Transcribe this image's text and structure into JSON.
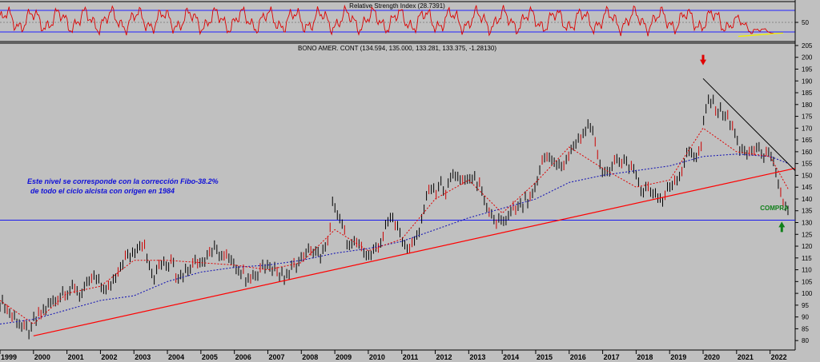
{
  "rsi_panel": {
    "title": "Relative Strength Index (28.7391)",
    "axis_ticks": [
      {
        "value": 50,
        "label": "50"
      }
    ],
    "levels": [
      30,
      50,
      70
    ],
    "range": [
      15,
      85
    ]
  },
  "price_panel": {
    "title": "BONO AMER. CONT (134.594, 135.000, 133.281, 133.375, -1.28130)",
    "annotation_line1": "Este nivel se corresponde con la corrección Fibo-38.2%",
    "annotation_line2": "de todo el ciclo alcista con origen en 1984",
    "buy_label": "COMPRA"
  },
  "colors": {
    "background": "#c0c0c0",
    "price_bars": "#000000",
    "price_bars_accent": "#cc0000",
    "support_line": "#ff0000",
    "fibo_line": "#1a1aee",
    "short_ma": "#e00000",
    "long_ma": "#1a1ab4",
    "rsi_line": "#dd0000",
    "rsi_trend": "#f0f000",
    "down_arrow": "#e00000",
    "up_arrow": "#10801a"
  },
  "chart_data": {
    "type": "line",
    "title": "BONO AMER. CONT (134.594, 135.000, 133.281, 133.375, -1.28130)",
    "xlabel": "",
    "ylabel": "",
    "x_ticks": [
      "1999",
      "2000",
      "2001",
      "2002",
      "2003",
      "2004",
      "2005",
      "2006",
      "2007",
      "2008",
      "2009",
      "2010",
      "2011",
      "2012",
      "2013",
      "2014",
      "2015",
      "2016",
      "2017",
      "2018",
      "2019",
      "2020",
      "2021",
      "2022"
    ],
    "xlim": [
      1999.0,
      2022.75
    ],
    "ylim": [
      76,
      206
    ],
    "y_ticks": [
      80,
      85,
      90,
      95,
      100,
      105,
      110,
      115,
      120,
      125,
      130,
      135,
      140,
      145,
      150,
      155,
      160,
      165,
      170,
      175,
      180,
      185,
      190,
      195,
      200,
      205
    ],
    "price_path": [
      [
        1999.0,
        97
      ],
      [
        1999.2,
        93
      ],
      [
        1999.45,
        89
      ],
      [
        1999.7,
        86
      ],
      [
        1999.9,
        83
      ],
      [
        2000.0,
        88
      ],
      [
        2000.25,
        92
      ],
      [
        2000.5,
        96
      ],
      [
        2000.75,
        99
      ],
      [
        2001.0,
        101
      ],
      [
        2001.2,
        103
      ],
      [
        2001.4,
        99
      ],
      [
        2001.6,
        104
      ],
      [
        2001.85,
        107
      ],
      [
        2002.0,
        103
      ],
      [
        2002.2,
        101
      ],
      [
        2002.35,
        104
      ],
      [
        2002.6,
        112
      ],
      [
        2002.8,
        117
      ],
      [
        2003.0,
        116
      ],
      [
        2003.15,
        120
      ],
      [
        2003.3,
        122
      ],
      [
        2003.45,
        112
      ],
      [
        2003.6,
        108
      ],
      [
        2003.8,
        114
      ],
      [
        2004.0,
        112
      ],
      [
        2004.15,
        115
      ],
      [
        2004.3,
        106
      ],
      [
        2004.45,
        108
      ],
      [
        2004.65,
        111
      ],
      [
        2004.85,
        114
      ],
      [
        2005.0,
        113
      ],
      [
        2005.2,
        116
      ],
      [
        2005.4,
        119
      ],
      [
        2005.6,
        117
      ],
      [
        2005.8,
        115
      ],
      [
        2006.0,
        113
      ],
      [
        2006.2,
        109
      ],
      [
        2006.45,
        106
      ],
      [
        2006.7,
        108
      ],
      [
        2006.9,
        111
      ],
      [
        2007.1,
        112
      ],
      [
        2007.35,
        108
      ],
      [
        2007.5,
        107
      ],
      [
        2007.7,
        110
      ],
      [
        2007.9,
        114
      ],
      [
        2008.1,
        117
      ],
      [
        2008.3,
        119
      ],
      [
        2008.5,
        116
      ],
      [
        2008.7,
        118
      ],
      [
        2008.85,
        126
      ],
      [
        2008.95,
        140
      ],
      [
        2009.05,
        135
      ],
      [
        2009.25,
        127
      ],
      [
        2009.45,
        119
      ],
      [
        2009.65,
        121
      ],
      [
        2009.85,
        118
      ],
      [
        2010.0,
        116
      ],
      [
        2010.2,
        117
      ],
      [
        2010.35,
        122
      ],
      [
        2010.5,
        127
      ],
      [
        2010.65,
        133
      ],
      [
        2010.85,
        129
      ],
      [
        2011.0,
        121
      ],
      [
        2011.15,
        119
      ],
      [
        2011.35,
        121
      ],
      [
        2011.55,
        127
      ],
      [
        2011.7,
        140
      ],
      [
        2011.85,
        144
      ],
      [
        2012.0,
        142
      ],
      [
        2012.15,
        146
      ],
      [
        2012.35,
        144
      ],
      [
        2012.55,
        151
      ],
      [
        2012.75,
        149
      ],
      [
        2012.95,
        148
      ],
      [
        2013.15,
        149
      ],
      [
        2013.35,
        146
      ],
      [
        2013.5,
        138
      ],
      [
        2013.65,
        133
      ],
      [
        2013.85,
        131
      ],
      [
        2014.0,
        130
      ],
      [
        2014.2,
        133
      ],
      [
        2014.4,
        136
      ],
      [
        2014.6,
        138
      ],
      [
        2014.8,
        140
      ],
      [
        2015.0,
        146
      ],
      [
        2015.1,
        150
      ],
      [
        2015.25,
        160
      ],
      [
        2015.45,
        156
      ],
      [
        2015.65,
        154
      ],
      [
        2015.85,
        155
      ],
      [
        2016.0,
        159
      ],
      [
        2016.2,
        163
      ],
      [
        2016.4,
        166
      ],
      [
        2016.55,
        172
      ],
      [
        2016.7,
        168
      ],
      [
        2016.85,
        159
      ],
      [
        2017.0,
        151
      ],
      [
        2017.2,
        152
      ],
      [
        2017.4,
        155
      ],
      [
        2017.6,
        157
      ],
      [
        2017.8,
        154
      ],
      [
        2018.0,
        150
      ],
      [
        2018.2,
        144
      ],
      [
        2018.4,
        144
      ],
      [
        2018.6,
        141
      ],
      [
        2018.8,
        139
      ],
      [
        2018.9,
        143
      ],
      [
        2019.05,
        146
      ],
      [
        2019.25,
        150
      ],
      [
        2019.45,
        155
      ],
      [
        2019.6,
        161
      ],
      [
        2019.8,
        158
      ],
      [
        2019.95,
        163
      ],
      [
        2020.05,
        175
      ],
      [
        2020.15,
        182
      ],
      [
        2020.35,
        179
      ],
      [
        2020.55,
        177
      ],
      [
        2020.75,
        174
      ],
      [
        2020.95,
        168
      ],
      [
        2021.1,
        161
      ],
      [
        2021.25,
        158
      ],
      [
        2021.45,
        161
      ],
      [
        2021.65,
        160
      ],
      [
        2021.85,
        159
      ],
      [
        2022.0,
        157
      ],
      [
        2022.15,
        152
      ],
      [
        2022.3,
        143
      ],
      [
        2022.45,
        137
      ],
      [
        2022.55,
        133
      ]
    ],
    "series": [
      {
        "name": "",
        "x": [
          1999.0,
          2000.0,
          2001.0,
          2002.0,
          2003.0,
          2004.0,
          2005.0,
          2006.0,
          2007.0,
          2008.0,
          2009.0,
          2010.0,
          2011.0,
          2012.0,
          2013.0,
          2014.0,
          2015.0,
          2016.0,
          2017.0,
          2018.0,
          2019.0,
          2020.0,
          2021.0,
          2022.0,
          2022.55
        ],
        "values": [
          97,
          87,
          100,
          103,
          114,
          114,
          113,
          112,
          110,
          113,
          127,
          118,
          123,
          140,
          148,
          134,
          147,
          162,
          153,
          145,
          148,
          170,
          160,
          158,
          144
        ]
      },
      {
        "name": "",
        "x": [
          1999.0,
          2000.0,
          2001.0,
          2002.0,
          2003.0,
          2004.0,
          2005.0,
          2006.0,
          2007.0,
          2008.0,
          2009.0,
          2010.0,
          2011.0,
          2012.0,
          2013.0,
          2014.0,
          2015.0,
          2016.0,
          2017.0,
          2018.0,
          2019.0,
          2020.0,
          2021.0,
          2022.0,
          2022.55
        ],
        "values": [
          87,
          89,
          93,
          97,
          99,
          105,
          109,
          111,
          112,
          114,
          117,
          119,
          122,
          127,
          132,
          136,
          140,
          147,
          150,
          152,
          154,
          158,
          159,
          158,
          155
        ]
      }
    ],
    "trend_lines": [
      {
        "from": [
          2000.0,
          82
        ],
        "to": [
          2022.75,
          153
        ]
      },
      {
        "from": [
          2020.0,
          191
        ],
        "to": [
          2022.75,
          152
        ]
      }
    ],
    "fibo_level": 131,
    "arrows": [
      {
        "x": 2020.0,
        "y": 199,
        "direction": "down"
      },
      {
        "x": 2022.35,
        "y": 128,
        "direction": "up"
      }
    ],
    "rsi": {
      "range": [
        15,
        85
      ],
      "reference_levels": [
        30,
        50,
        70
      ],
      "last_value": 28.7391
    }
  }
}
